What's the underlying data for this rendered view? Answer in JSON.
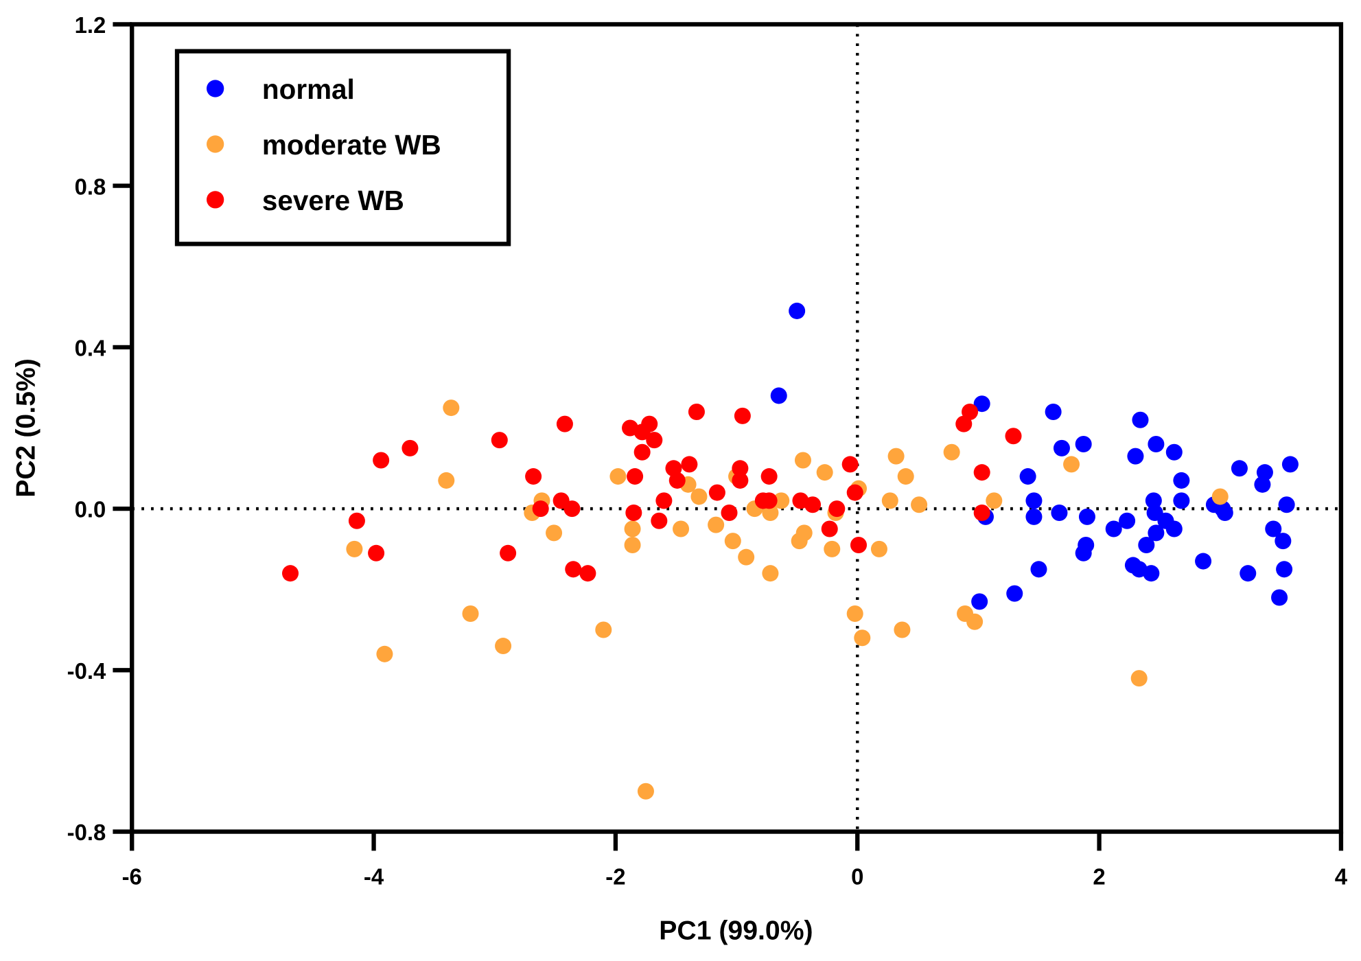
{
  "chart_data": {
    "type": "scatter",
    "title": "",
    "xlabel": "PC1 (99.0%)",
    "ylabel": "PC2 (0.5%)",
    "xlim": [
      -6,
      4
    ],
    "ylim": [
      -0.8,
      1.2
    ],
    "xticks": [
      "-6",
      "-4",
      "-2",
      "0",
      "2",
      "4"
    ],
    "yticks": [
      "-0.8",
      "-0.4",
      "0.0",
      "0.4",
      "0.8",
      "1.2"
    ],
    "grid": false,
    "reference_lines": {
      "x": 0,
      "y": 0,
      "style": "dotted"
    },
    "legend_position": "top-left",
    "series": [
      {
        "name": "normal",
        "color": "#0000ff",
        "points": [
          [
            -0.5,
            0.49
          ],
          [
            -0.65,
            0.28
          ],
          [
            1.03,
            0.26
          ],
          [
            1.06,
            -0.02
          ],
          [
            1.01,
            -0.23
          ],
          [
            1.3,
            -0.21
          ],
          [
            1.41,
            0.08
          ],
          [
            1.46,
            0.02
          ],
          [
            1.46,
            -0.02
          ],
          [
            1.5,
            -0.15
          ],
          [
            1.62,
            0.24
          ],
          [
            1.69,
            0.15
          ],
          [
            1.67,
            -0.01
          ],
          [
            1.87,
            0.16
          ],
          [
            1.9,
            -0.02
          ],
          [
            1.89,
            -0.09
          ],
          [
            1.87,
            -0.11
          ],
          [
            2.12,
            -0.05
          ],
          [
            2.23,
            -0.03
          ],
          [
            2.34,
            0.22
          ],
          [
            2.3,
            0.13
          ],
          [
            2.28,
            -0.14
          ],
          [
            2.33,
            -0.15
          ],
          [
            2.43,
            -0.16
          ],
          [
            2.39,
            -0.09
          ],
          [
            2.47,
            0.16
          ],
          [
            2.45,
            0.02
          ],
          [
            2.46,
            -0.01
          ],
          [
            2.47,
            -0.06
          ],
          [
            2.55,
            -0.03
          ],
          [
            2.62,
            0.14
          ],
          [
            2.68,
            0.07
          ],
          [
            2.68,
            0.02
          ],
          [
            2.62,
            -0.05
          ],
          [
            2.86,
            -0.13
          ],
          [
            2.95,
            0.01
          ],
          [
            3.02,
            0.0
          ],
          [
            3.04,
            -0.01
          ],
          [
            3.16,
            0.1
          ],
          [
            3.23,
            -0.16
          ],
          [
            3.37,
            0.09
          ],
          [
            3.35,
            0.06
          ],
          [
            3.44,
            -0.05
          ],
          [
            3.52,
            -0.08
          ],
          [
            3.53,
            -0.15
          ],
          [
            3.55,
            0.01
          ],
          [
            3.49,
            -0.22
          ],
          [
            3.58,
            0.11
          ]
        ]
      },
      {
        "name": "moderate WB",
        "color": "#ffa53c",
        "points": [
          [
            -3.36,
            0.25
          ],
          [
            -3.4,
            0.07
          ],
          [
            -4.16,
            -0.1
          ],
          [
            -3.91,
            -0.36
          ],
          [
            -3.2,
            -0.26
          ],
          [
            -2.93,
            -0.34
          ],
          [
            -2.69,
            -0.01
          ],
          [
            -2.61,
            0.02
          ],
          [
            -2.51,
            -0.06
          ],
          [
            -2.1,
            -0.3
          ],
          [
            -1.98,
            0.08
          ],
          [
            -1.86,
            -0.05
          ],
          [
            -1.86,
            -0.09
          ],
          [
            -1.75,
            -0.7
          ],
          [
            -1.46,
            -0.05
          ],
          [
            -1.4,
            0.06
          ],
          [
            -1.31,
            0.03
          ],
          [
            -1.17,
            -0.04
          ],
          [
            -1.03,
            -0.08
          ],
          [
            -1.0,
            0.08
          ],
          [
            -0.92,
            -0.12
          ],
          [
            -0.85,
            0.0
          ],
          [
            -0.72,
            -0.01
          ],
          [
            -0.72,
            -0.16
          ],
          [
            -0.63,
            0.02
          ],
          [
            -0.45,
            0.12
          ],
          [
            -0.44,
            -0.06
          ],
          [
            -0.48,
            -0.08
          ],
          [
            -0.27,
            0.09
          ],
          [
            -0.21,
            -0.1
          ],
          [
            -0.18,
            -0.01
          ],
          [
            0.01,
            0.05
          ],
          [
            -0.02,
            -0.26
          ],
          [
            0.04,
            -0.32
          ],
          [
            0.18,
            -0.1
          ],
          [
            0.27,
            0.02
          ],
          [
            0.32,
            0.13
          ],
          [
            0.4,
            0.08
          ],
          [
            0.37,
            -0.3
          ],
          [
            0.51,
            0.01
          ],
          [
            0.78,
            0.14
          ],
          [
            0.89,
            -0.26
          ],
          [
            0.97,
            -0.28
          ],
          [
            1.13,
            0.02
          ],
          [
            1.77,
            0.11
          ],
          [
            2.33,
            -0.42
          ],
          [
            3.0,
            0.03
          ]
        ]
      },
      {
        "name": "severe WB",
        "color": "#ff0000",
        "points": [
          [
            -4.69,
            -0.16
          ],
          [
            -4.14,
            -0.03
          ],
          [
            -3.94,
            0.12
          ],
          [
            -3.98,
            -0.11
          ],
          [
            -3.7,
            0.15
          ],
          [
            -2.96,
            0.17
          ],
          [
            -2.89,
            -0.11
          ],
          [
            -2.68,
            0.08
          ],
          [
            -2.62,
            0.0
          ],
          [
            -2.45,
            0.02
          ],
          [
            -2.42,
            0.21
          ],
          [
            -2.36,
            0.0
          ],
          [
            -2.35,
            -0.15
          ],
          [
            -2.23,
            -0.16
          ],
          [
            -1.88,
            0.2
          ],
          [
            -1.84,
            0.08
          ],
          [
            -1.85,
            -0.01
          ],
          [
            -1.78,
            0.14
          ],
          [
            -1.78,
            0.19
          ],
          [
            -1.72,
            0.21
          ],
          [
            -1.68,
            0.17
          ],
          [
            -1.64,
            -0.03
          ],
          [
            -1.6,
            0.02
          ],
          [
            -1.52,
            0.1
          ],
          [
            -1.49,
            0.07
          ],
          [
            -1.39,
            0.11
          ],
          [
            -1.33,
            0.24
          ],
          [
            -1.16,
            0.04
          ],
          [
            -1.06,
            -0.01
          ],
          [
            -0.97,
            0.1
          ],
          [
            -0.97,
            0.07
          ],
          [
            -0.95,
            0.23
          ],
          [
            -0.78,
            0.02
          ],
          [
            -0.73,
            0.08
          ],
          [
            -0.73,
            0.02
          ],
          [
            -0.47,
            0.02
          ],
          [
            -0.37,
            0.01
          ],
          [
            -0.23,
            -0.05
          ],
          [
            -0.17,
            0.0
          ],
          [
            -0.06,
            0.11
          ],
          [
            -0.02,
            0.04
          ],
          [
            0.01,
            -0.09
          ],
          [
            0.88,
            0.21
          ],
          [
            0.93,
            0.24
          ],
          [
            1.03,
            0.09
          ],
          [
            1.03,
            -0.01
          ],
          [
            1.29,
            0.18
          ]
        ]
      }
    ]
  }
}
